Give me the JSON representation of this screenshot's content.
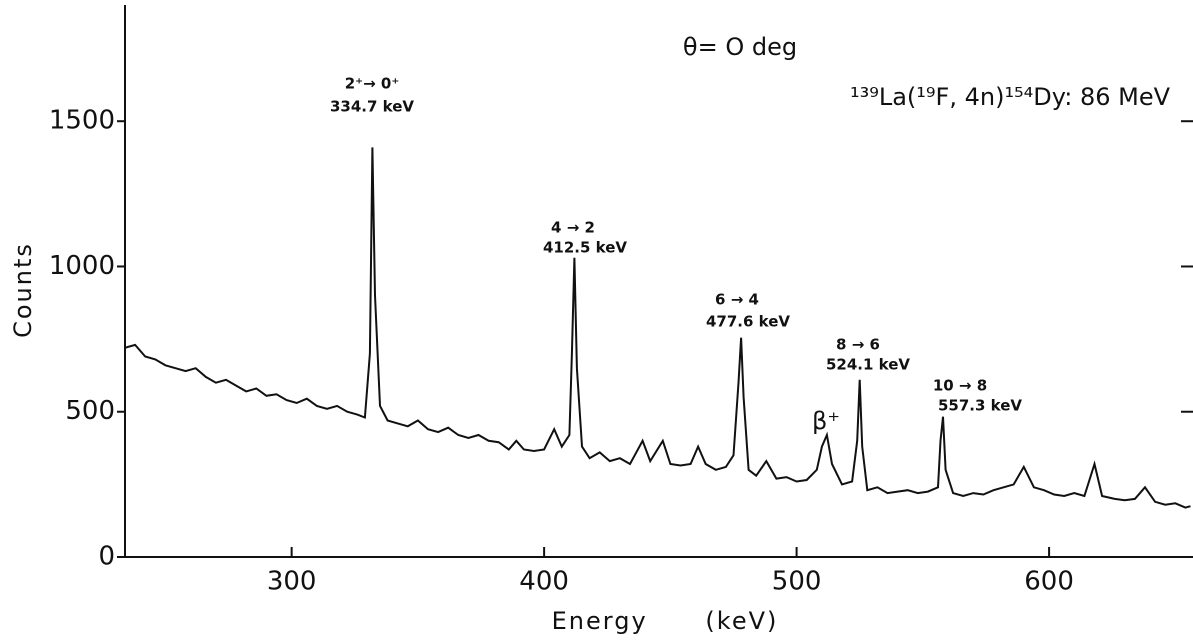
{
  "chart_data": {
    "type": "line",
    "xlabel": "Energy      (keV)",
    "ylabel": "Counts",
    "annotations": [
      "θ= O deg",
      "¹³⁹La(¹⁹F, 4n)¹⁵⁴Dy: 86 MeV",
      "2⁺→ 0⁺",
      "334.7 keV",
      "4 → 2",
      "412.5 keV",
      "6 → 4",
      "477.6 keV",
      "8 → 6",
      "524.1 keV",
      "10 → 8",
      "557.3 keV",
      "β⁺"
    ],
    "x": [
      234,
      238,
      242,
      246,
      250,
      254,
      258,
      262,
      266,
      270,
      274,
      278,
      282,
      286,
      290,
      294,
      298,
      302,
      306,
      310,
      314,
      318,
      322,
      326,
      329,
      331,
      332,
      333,
      335,
      338,
      342,
      346,
      350,
      354,
      358,
      362,
      366,
      370,
      374,
      378,
      382,
      386,
      389,
      392,
      396,
      400,
      404,
      407,
      410,
      411,
      412,
      413,
      415,
      418,
      422,
      426,
      430,
      434,
      439,
      442,
      447,
      450,
      454,
      458,
      461,
      464,
      468,
      472,
      475,
      477,
      478,
      479,
      481,
      484,
      488,
      492,
      496,
      500,
      504,
      508,
      510,
      512,
      514,
      518,
      522,
      524,
      525,
      526,
      528,
      532,
      536,
      540,
      544,
      548,
      552,
      556,
      557,
      558,
      559,
      562,
      566,
      570,
      574,
      578,
      582,
      586,
      590,
      594,
      598,
      602,
      606,
      610,
      614,
      618,
      621,
      626,
      630,
      634,
      638,
      642,
      646,
      650,
      654,
      656
    ],
    "values": [
      720,
      730,
      690,
      680,
      660,
      650,
      640,
      650,
      620,
      600,
      610,
      590,
      570,
      580,
      555,
      560,
      540,
      530,
      545,
      520,
      510,
      520,
      500,
      490,
      480,
      700,
      1410,
      900,
      520,
      470,
      460,
      450,
      470,
      440,
      430,
      445,
      420,
      410,
      420,
      400,
      395,
      370,
      400,
      370,
      365,
      370,
      440,
      380,
      420,
      700,
      1030,
      650,
      380,
      340,
      360,
      330,
      340,
      320,
      400,
      330,
      400,
      320,
      315,
      320,
      380,
      320,
      300,
      310,
      350,
      600,
      755,
      550,
      300,
      280,
      330,
      270,
      275,
      260,
      265,
      300,
      380,
      420,
      320,
      250,
      260,
      400,
      610,
      380,
      230,
      240,
      220,
      225,
      230,
      220,
      225,
      240,
      400,
      483,
      300,
      220,
      210,
      220,
      215,
      230,
      240,
      250,
      310,
      240,
      230,
      215,
      210,
      220,
      210,
      320,
      210,
      200,
      195,
      200,
      240,
      190,
      180,
      185,
      170,
      175
    ],
    "color": "#111111",
    "xlim": [
      234,
      657
    ],
    "ylim": [
      0,
      1900
    ],
    "xticks": [
      300,
      400,
      500,
      600
    ],
    "yticks": [
      0,
      500,
      1000,
      1500
    ]
  }
}
